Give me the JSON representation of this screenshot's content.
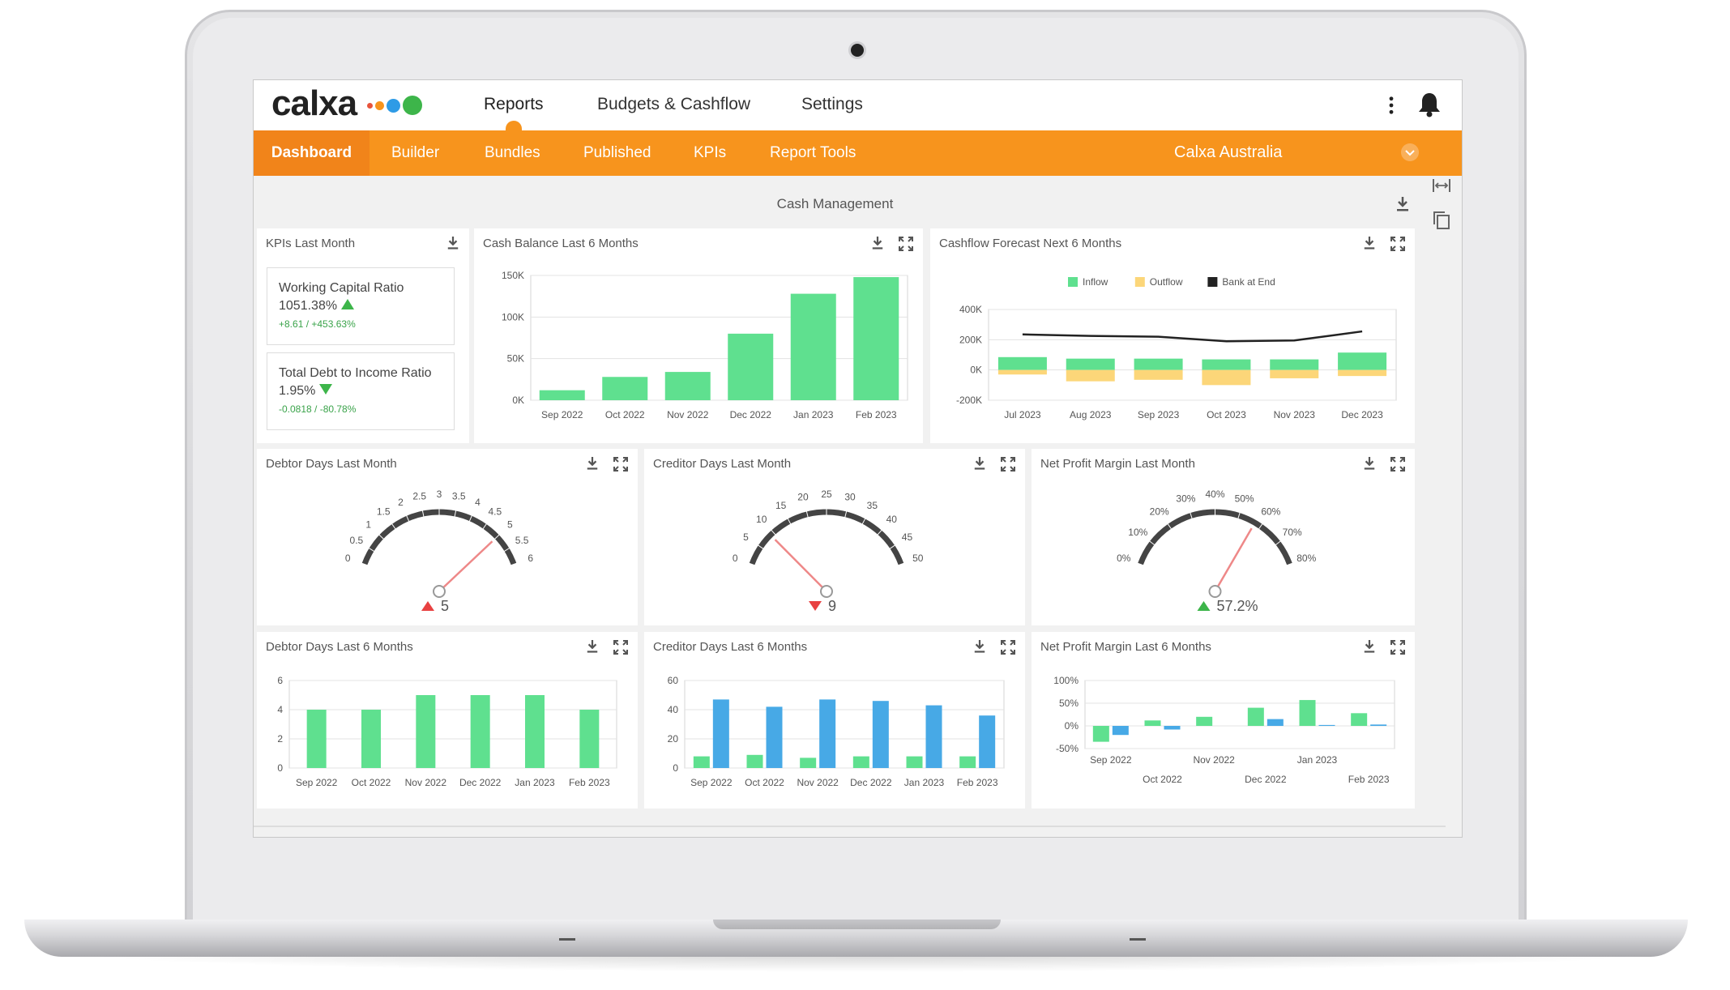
{
  "app": {
    "logo_text": "calxa",
    "logo_dots": [
      "#e8543c",
      "#f7941d",
      "#2e9be6",
      "#3db54a"
    ],
    "accent_color": "#f7941d",
    "top_nav": [
      {
        "label": "Reports",
        "active": true
      },
      {
        "label": "Budgets & Cashflow",
        "active": false
      },
      {
        "label": "Settings",
        "active": false
      }
    ],
    "sub_tabs": [
      {
        "label": "Dashboard",
        "active": true
      },
      {
        "label": "Builder",
        "active": false
      },
      {
        "label": "Bundles",
        "active": false
      },
      {
        "label": "Published",
        "active": false
      },
      {
        "label": "KPIs",
        "active": false
      },
      {
        "label": "Report Tools",
        "active": false
      }
    ],
    "company": "Calxa Australia",
    "icons": [
      "more-vertical-icon",
      "bell-icon",
      "chevron-down-icon",
      "expand-width-icon",
      "copy-icon",
      "download-icon",
      "fullscreen-icon"
    ]
  },
  "dashboard": {
    "section_title": "Cash Management",
    "kpis_panel": {
      "title": "KPIs Last Month",
      "kpis": [
        {
          "name": "Working Capital Ratio",
          "value": "1051.38%",
          "direction": "up",
          "change": "+8.61 / +453.63%"
        },
        {
          "name": "Total Debt to Income Ratio",
          "value": "1.95%",
          "direction": "down",
          "change": "-0.0818 / -80.78%"
        }
      ]
    },
    "panels": {
      "cash_balance": {
        "title": "Cash Balance Last 6 Months"
      },
      "cashflow_forecast": {
        "title": "Cashflow Forecast Next 6 Months"
      },
      "debtor_gauge": {
        "title": "Debtor Days Last Month",
        "value_text": "5"
      },
      "creditor_gauge": {
        "title": "Creditor Days Last Month",
        "value_text": "9"
      },
      "npm_gauge": {
        "title": "Net Profit Margin Last Month",
        "value_text": "57.2%"
      },
      "debtor_6m": {
        "title": "Debtor Days Last 6 Months"
      },
      "creditor_6m": {
        "title": "Creditor Days Last 6 Months"
      },
      "npm_6m": {
        "title": "Net Profit Margin Last 6 Months"
      }
    }
  },
  "chart_data": [
    {
      "id": "cash_balance",
      "type": "bar",
      "title": "Cash Balance Last 6 Months",
      "categories": [
        "Sep 2022",
        "Oct 2022",
        "Nov 2022",
        "Dec 2022",
        "Jan 2023",
        "Feb 2023"
      ],
      "values": [
        12000,
        28000,
        34000,
        80000,
        128000,
        148000
      ],
      "ylim": [
        0,
        150000
      ],
      "yticks": [
        "0K",
        "50K",
        "100K",
        "150K"
      ],
      "ytick_values": [
        0,
        50000,
        100000,
        150000
      ],
      "color": "#5fe08f",
      "grid": true
    },
    {
      "id": "cashflow_forecast",
      "type": "bar",
      "title": "Cashflow Forecast Next 6 Months",
      "categories": [
        "Jul 2023",
        "Aug 2023",
        "Sep 2023",
        "Oct 2023",
        "Nov 2023",
        "Dec 2023"
      ],
      "series": [
        {
          "name": "Inflow",
          "type": "bar",
          "color": "#5fe08f",
          "values": [
            85000,
            75000,
            75000,
            70000,
            70000,
            115000
          ]
        },
        {
          "name": "Outflow",
          "type": "bar",
          "color": "#fcd679",
          "values": [
            -30000,
            -75000,
            -65000,
            -100000,
            -55000,
            -40000
          ]
        },
        {
          "name": "Bank at End",
          "type": "line",
          "color": "#222222",
          "values": [
            235000,
            225000,
            220000,
            190000,
            195000,
            255000
          ]
        }
      ],
      "ylim": [
        -200000,
        400000
      ],
      "yticks": [
        "-200K",
        "0K",
        "200K",
        "400K"
      ],
      "ytick_values": [
        -200000,
        0,
        200000,
        400000
      ],
      "legend": "top-center",
      "grid": true
    },
    {
      "id": "debtor_gauge",
      "type": "gauge",
      "min": 0,
      "max": 6,
      "value": 5,
      "ticks": [
        "0",
        "0.5",
        "1",
        "1.5",
        "2",
        "2.5",
        "3",
        "3.5",
        "4",
        "4.5",
        "5",
        "5.5",
        "6"
      ],
      "tick_values": [
        0,
        0.5,
        1,
        1.5,
        2,
        2.5,
        3,
        3.5,
        4,
        4.5,
        5,
        5.5,
        6
      ],
      "value_label": "5",
      "trend": "up",
      "trend_color": "#e84141"
    },
    {
      "id": "creditor_gauge",
      "type": "gauge",
      "min": 0,
      "max": 50,
      "value": 9,
      "ticks": [
        "0",
        "5",
        "10",
        "15",
        "20",
        "25",
        "30",
        "35",
        "40",
        "45",
        "50"
      ],
      "tick_values": [
        0,
        5,
        10,
        15,
        20,
        25,
        30,
        35,
        40,
        45,
        50
      ],
      "value_label": "9",
      "trend": "down",
      "trend_color": "#e84141"
    },
    {
      "id": "npm_gauge",
      "type": "gauge",
      "min": 0,
      "max": 80,
      "value": 57.2,
      "ticks": [
        "0%",
        "10%",
        "20%",
        "30%",
        "40%",
        "50%",
        "60%",
        "70%",
        "80%"
      ],
      "tick_values": [
        0,
        10,
        20,
        30,
        40,
        50,
        60,
        70,
        80
      ],
      "value_label": "57.2%",
      "trend": "up",
      "trend_color": "#3db54a"
    },
    {
      "id": "debtor_6m",
      "type": "bar",
      "title": "Debtor Days Last 6 Months",
      "categories": [
        "Sep 2022",
        "Oct 2022",
        "Nov 2022",
        "Dec 2022",
        "Jan 2023",
        "Feb 2023"
      ],
      "values": [
        4,
        4,
        5,
        5,
        5,
        4
      ],
      "ylim": [
        0,
        6
      ],
      "yticks": [
        "0",
        "2",
        "4",
        "6"
      ],
      "ytick_values": [
        0,
        2,
        4,
        6
      ],
      "color": "#5fe08f",
      "grid": true
    },
    {
      "id": "creditor_6m",
      "type": "bar",
      "title": "Creditor Days Last 6 Months",
      "categories": [
        "Sep 2022",
        "Oct 2022",
        "Nov 2022",
        "Dec 2022",
        "Jan 2023",
        "Feb 2023"
      ],
      "series": [
        {
          "color": "#5fe08f",
          "values": [
            8,
            9,
            7,
            8,
            8,
            8
          ]
        },
        {
          "color": "#47a9e6",
          "values": [
            47,
            42,
            47,
            46,
            43,
            36
          ]
        }
      ],
      "ylim": [
        0,
        60
      ],
      "yticks": [
        "0",
        "20",
        "40",
        "60"
      ],
      "ytick_values": [
        0,
        20,
        40,
        60
      ],
      "grid": true
    },
    {
      "id": "npm_6m",
      "type": "bar",
      "title": "Net Profit Margin Last 6 Months",
      "categories": [
        "Sep 2022",
        "Oct 2022",
        "Nov 2022",
        "Dec 2022",
        "Jan 2023",
        "Feb 2023"
      ],
      "xtick_labels": [
        "Sep 2022",
        "Oct 2022",
        "Nov 2022",
        "Dec 2022",
        "Jan 2023",
        "Feb 2023"
      ],
      "series": [
        {
          "color": "#5fe08f",
          "values": [
            -35,
            12,
            20,
            40,
            57,
            28
          ]
        },
        {
          "color": "#47a9e6",
          "values": [
            -20,
            -8,
            0,
            15,
            2,
            3
          ]
        }
      ],
      "ylim": [
        -50,
        100
      ],
      "yticks": [
        "-50%",
        "0%",
        "50%",
        "100%"
      ],
      "ytick_values": [
        -50,
        0,
        50,
        100
      ],
      "grid": true
    }
  ]
}
